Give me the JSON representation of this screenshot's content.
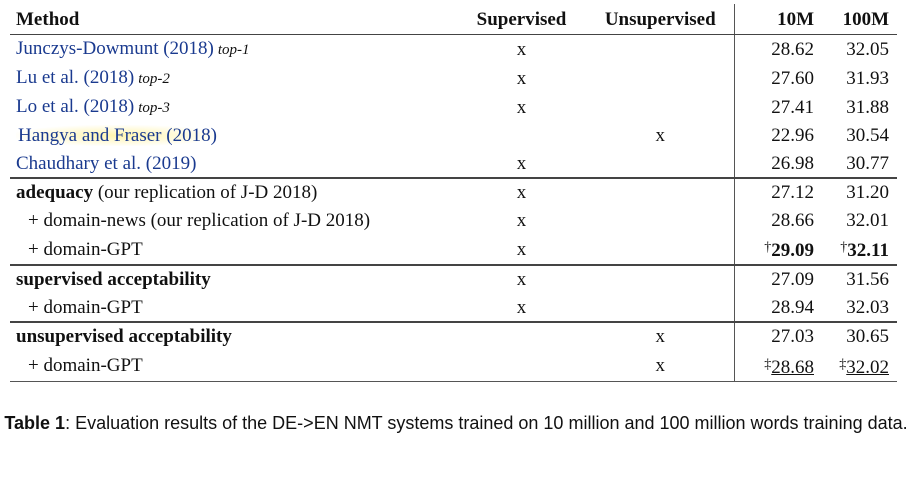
{
  "table": {
    "headers": {
      "method": "Method",
      "supervised": "Supervised",
      "unsupervised": "Unsupervised",
      "m10": "10M",
      "m100": "100M"
    },
    "rows": [
      {
        "method": "Junczys-Dowmunt (2018)",
        "tag": "top-1",
        "supervised": "x",
        "unsupervised": "",
        "m10": "28.62",
        "m100": "32.05"
      },
      {
        "method": "Lu et al. (2018)",
        "tag": "top-2",
        "supervised": "x",
        "unsupervised": "",
        "m10": "27.60",
        "m100": "31.93"
      },
      {
        "method": "Lo et al. (2018)",
        "tag": "top-3",
        "supervised": "x",
        "unsupervised": "",
        "m10": "27.41",
        "m100": "31.88"
      },
      {
        "method": "Hangya and Fraser (2018)",
        "supervised": "",
        "unsupervised": "x",
        "m10": "22.96",
        "m100": "30.54"
      },
      {
        "method": "Chaudhary et al. (2019)",
        "supervised": "x",
        "unsupervised": "",
        "m10": "26.98",
        "m100": "30.77"
      },
      {
        "method_bold": "adequacy",
        "method_rest": " (our replication of J-D 2018)",
        "supervised": "x",
        "unsupervised": "",
        "m10": "27.12",
        "m100": "31.20"
      },
      {
        "method": "+ domain-news (our replication of J-D 2018)",
        "supervised": "x",
        "unsupervised": "",
        "m10": "28.66",
        "m100": "32.01"
      },
      {
        "method": "+ domain-GPT",
        "supervised": "x",
        "unsupervised": "",
        "m10_mark": "†",
        "m10": "29.09",
        "m100_mark": "†",
        "m100": "32.11"
      },
      {
        "method_bold": "supervised acceptability",
        "supervised": "x",
        "unsupervised": "",
        "m10": "27.09",
        "m100": "31.56"
      },
      {
        "method": "+ domain-GPT",
        "supervised": "x",
        "unsupervised": "",
        "m10": "28.94",
        "m100": "32.03"
      },
      {
        "method_bold": "unsupervised acceptability",
        "supervised": "",
        "unsupervised": "x",
        "m10": "27.03",
        "m100": "30.65"
      },
      {
        "method": "+ domain-GPT",
        "supervised": "",
        "unsupervised": "x",
        "m10_mark": "‡",
        "m10": "28.68",
        "m100_mark": "‡",
        "m100": "32.02"
      }
    ]
  },
  "caption": {
    "label": "Table 1",
    "text": ": Evaluation results of the DE->EN NMT systems trained on 10 million and 100 million words training data."
  },
  "colors": {
    "link": "#1a3a8f",
    "highlight": "#fff5aa",
    "rule": "#444444"
  }
}
